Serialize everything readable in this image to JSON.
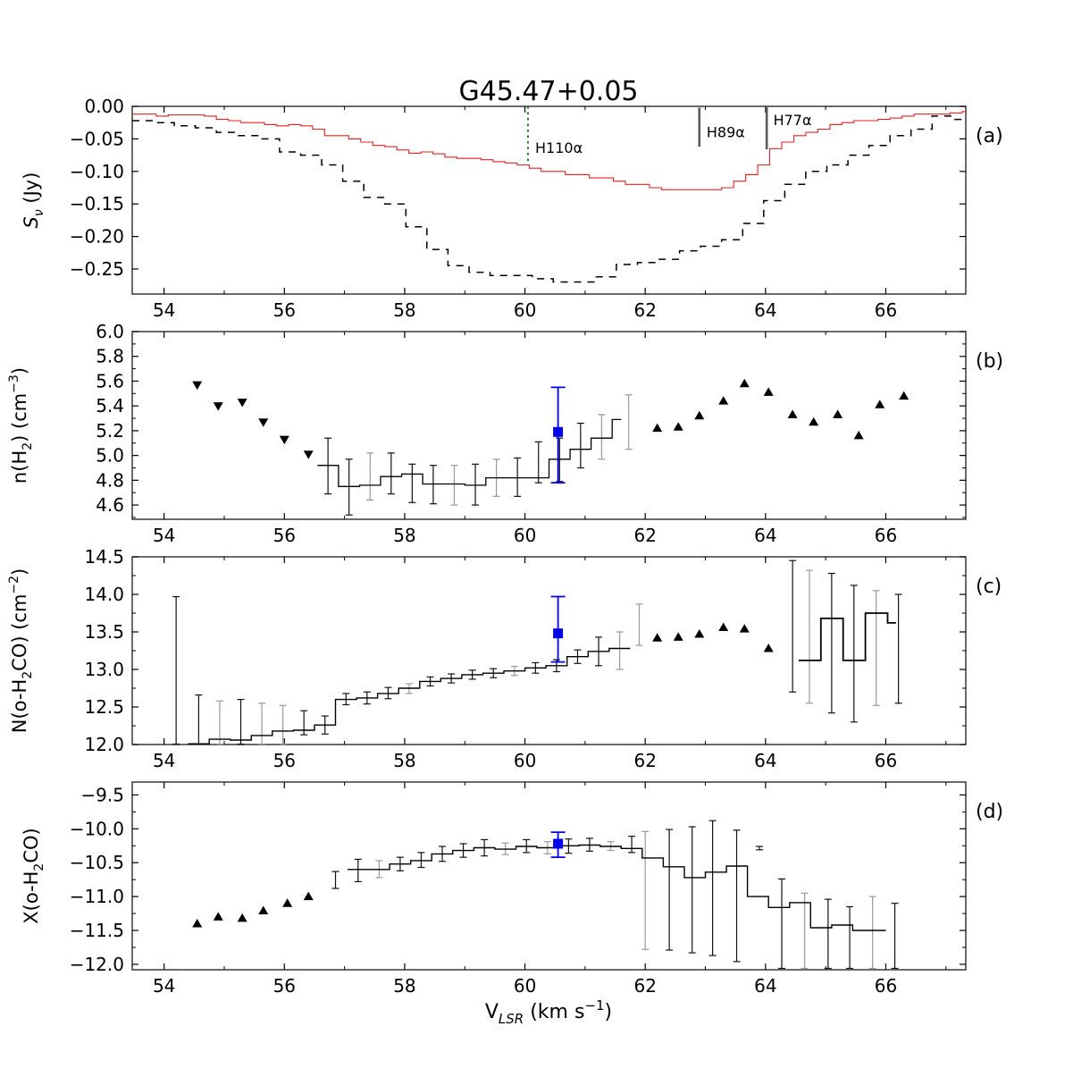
{
  "title": "G45.47+0.05",
  "xlabel_parts": [
    {
      "t": "V",
      "k": "n"
    },
    {
      "t": "LSR",
      "k": "subi"
    },
    {
      "t": " (km s",
      "k": "n"
    },
    {
      "t": "−1",
      "k": "sup"
    },
    {
      "t": ")",
      "k": "n"
    }
  ],
  "figure": {
    "bg": "#ffffff",
    "xlim": [
      53.47,
      67.33
    ],
    "x_ticks_major": [
      54,
      56,
      58,
      60,
      62,
      64,
      66
    ],
    "x_tick_labels": [
      "54",
      "56",
      "58",
      "60",
      "62",
      "64",
      "66"
    ],
    "x_ticks_minor": [
      55,
      57,
      59,
      61,
      63,
      65,
      67
    ]
  },
  "colors": {
    "red_line": "#e62020",
    "black_line": "#000000",
    "green_marker": "#1a7a1a",
    "gray_marker": "#5a5a5a",
    "gray_label": "#787878",
    "light_gray_label": "#8c8c8c",
    "blue_point": "#0000e8",
    "err_dark": "#111111",
    "err_gray": "#999999"
  },
  "chart_data": [
    {
      "id": "a",
      "tag": "(a)",
      "type": "line",
      "ylabel_parts": [
        {
          "t": "S",
          "k": "i"
        },
        {
          "t": "ν",
          "k": "subi"
        },
        {
          "t": " (Jy)",
          "k": "n"
        }
      ],
      "ylim_top": 0.0,
      "ylim_bottom": -0.2885,
      "yticks": [
        0.0,
        -0.05,
        -0.1,
        -0.15,
        -0.2,
        -0.25
      ],
      "ytick_labels": [
        "0.00",
        "−0.05",
        "−0.10",
        "−0.15",
        "−0.20",
        "−0.25"
      ],
      "yticks_minor": [],
      "steps": [
        {
          "name": "h2co-absorption-red",
          "x0": 53.47,
          "dx": 0.2,
          "color": "red_line",
          "lw": 1.1,
          "dash": null,
          "values": [
            -0.012,
            -0.012,
            -0.015,
            -0.013,
            -0.013,
            -0.013,
            -0.015,
            -0.02,
            -0.022,
            -0.025,
            -0.025,
            -0.028,
            -0.03,
            -0.028,
            -0.03,
            -0.035,
            -0.045,
            -0.045,
            -0.05,
            -0.055,
            -0.06,
            -0.062,
            -0.067,
            -0.072,
            -0.07,
            -0.073,
            -0.078,
            -0.08,
            -0.08,
            -0.082,
            -0.085,
            -0.087,
            -0.09,
            -0.095,
            -0.1,
            -0.1,
            -0.105,
            -0.105,
            -0.11,
            -0.11,
            -0.115,
            -0.12,
            -0.12,
            -0.125,
            -0.128,
            -0.128,
            -0.128,
            -0.128,
            -0.128,
            -0.125,
            -0.115,
            -0.105,
            -0.09,
            -0.065,
            -0.055,
            -0.045,
            -0.04,
            -0.035,
            -0.028,
            -0.025,
            -0.022,
            -0.022,
            -0.02,
            -0.018,
            -0.015,
            -0.012,
            -0.012,
            -0.012,
            -0.01,
            -0.008
          ]
        },
        {
          "name": "h2co-absorption-black-dashed",
          "x0": 53.47,
          "dx": 0.35,
          "color": "black_line",
          "lw": 1.5,
          "dash": "8,7",
          "values": [
            -0.022,
            -0.025,
            -0.03,
            -0.033,
            -0.04,
            -0.045,
            -0.05,
            -0.07,
            -0.075,
            -0.09,
            -0.115,
            -0.14,
            -0.15,
            -0.185,
            -0.22,
            -0.245,
            -0.255,
            -0.26,
            -0.26,
            -0.265,
            -0.27,
            -0.27,
            -0.262,
            -0.243,
            -0.24,
            -0.235,
            -0.222,
            -0.215,
            -0.205,
            -0.18,
            -0.145,
            -0.12,
            -0.1,
            -0.09,
            -0.075,
            -0.06,
            -0.045,
            -0.035,
            -0.015,
            -0.02
          ]
        }
      ],
      "vlines": [
        {
          "x": 60.05,
          "y_from": 0.0,
          "y_to": -0.085,
          "color": "green_marker",
          "dash": "2.5,4",
          "lw": 2.0,
          "label": "H110α",
          "label_x": 60.17,
          "label_y": -0.0715,
          "label_color": "green_marker"
        },
        {
          "x": 62.9,
          "y_from": -0.002,
          "y_to": -0.062,
          "color": "gray_marker",
          "dash": null,
          "lw": 2.6,
          "label": "H89α",
          "label_x": 63.02,
          "label_y": -0.0475,
          "label_color": "gray_label"
        },
        {
          "x": 64.02,
          "y_from": 0.0,
          "y_to": -0.066,
          "color": "gray_marker",
          "dash": null,
          "lw": 2.6,
          "label": "H77α",
          "label_x": 64.13,
          "label_y": -0.029,
          "label_color": "light_gray_label"
        }
      ]
    },
    {
      "id": "b",
      "tag": "(b)",
      "type": "line",
      "ylabel_parts": [
        {
          "t": "n(H",
          "k": "n"
        },
        {
          "t": "2",
          "k": "sub"
        },
        {
          "t": ") (cm",
          "k": "n"
        },
        {
          "t": "−3",
          "k": "sup"
        },
        {
          "t": ")",
          "k": "n"
        }
      ],
      "ylim_top": 6.0,
      "ylim_bottom": 4.485,
      "yticks": [
        6.0,
        5.8,
        5.6,
        5.4,
        5.2,
        5.0,
        4.8,
        4.6
      ],
      "ytick_labels": [
        "6.0",
        "5.8",
        "5.6",
        "5.4",
        "5.2",
        "5.0",
        "4.8",
        "4.6"
      ],
      "yticks_minor": [
        5.9,
        5.7,
        5.5,
        5.3,
        5.1,
        4.9,
        4.7,
        4.5
      ],
      "steps": [
        {
          "name": "nH2-step",
          "x0": 56.55,
          "dx": 0.35,
          "dxl": 0.15,
          "color": "black_line",
          "lw": 1.3,
          "dash": null,
          "values": [
            4.92,
            4.75,
            4.76,
            4.83,
            4.85,
            4.77,
            4.77,
            4.76,
            4.82,
            4.82,
            4.82,
            4.97,
            5.05,
            5.14,
            5.29
          ]
        }
      ],
      "errorbars": [
        [
          56.725,
          4.69,
          5.14,
          "d"
        ],
        [
          57.075,
          4.52,
          4.97,
          "d"
        ],
        [
          57.425,
          4.64,
          5.02,
          "g"
        ],
        [
          57.775,
          4.69,
          5.02,
          "d"
        ],
        [
          58.125,
          4.62,
          4.93,
          "d"
        ],
        [
          58.475,
          4.61,
          4.92,
          "d"
        ],
        [
          58.825,
          4.6,
          4.92,
          "g"
        ],
        [
          59.175,
          4.6,
          4.93,
          "d"
        ],
        [
          59.525,
          4.67,
          4.97,
          "g"
        ],
        [
          59.875,
          4.67,
          4.98,
          "d"
        ],
        [
          60.225,
          4.78,
          5.11,
          "d"
        ],
        [
          60.575,
          4.79,
          5.14,
          "d"
        ],
        [
          60.925,
          4.9,
          5.26,
          "d"
        ],
        [
          61.275,
          4.97,
          5.33,
          "g"
        ],
        [
          61.725,
          5.05,
          5.49,
          "g"
        ]
      ],
      "markers_down": [
        [
          54.55,
          5.57
        ],
        [
          54.9,
          5.4
        ],
        [
          55.3,
          5.43
        ],
        [
          55.65,
          5.27
        ],
        [
          56.0,
          5.13
        ],
        [
          56.4,
          5.01
        ]
      ],
      "markers_up": [
        [
          62.2,
          5.22
        ],
        [
          62.55,
          5.23
        ],
        [
          62.9,
          5.32
        ],
        [
          63.3,
          5.44
        ],
        [
          63.65,
          5.58
        ],
        [
          64.05,
          5.51
        ],
        [
          64.45,
          5.33
        ],
        [
          64.8,
          5.27
        ],
        [
          65.2,
          5.33
        ],
        [
          65.55,
          5.16
        ],
        [
          65.9,
          5.41
        ],
        [
          66.3,
          5.48
        ]
      ],
      "blue_point": {
        "x": 60.55,
        "y": 5.19,
        "lo": 4.78,
        "hi": 5.55
      }
    },
    {
      "id": "c",
      "tag": "(c)",
      "type": "line",
      "ylabel_parts": [
        {
          "t": "N(o-H",
          "k": "n"
        },
        {
          "t": "2",
          "k": "sub"
        },
        {
          "t": "CO) (cm",
          "k": "n"
        },
        {
          "t": "−2",
          "k": "sup"
        },
        {
          "t": ")",
          "k": "n"
        }
      ],
      "ylim_top": 14.5,
      "ylim_bottom": 12.0,
      "yticks": [
        14.5,
        14.0,
        13.5,
        13.0,
        12.5,
        12.0
      ],
      "ytick_labels": [
        "14.5",
        "14.0",
        "13.5",
        "13.0",
        "12.5",
        "12.0"
      ],
      "yticks_minor": [
        14.25,
        13.75,
        13.25,
        12.75,
        12.25
      ],
      "steps": [
        {
          "name": "NH2CO-step",
          "x0": 54.4,
          "dx": 0.35,
          "color": "black_line",
          "lw": 1.4,
          "dash": null,
          "values": [
            12.01,
            12.07,
            12.06,
            12.12,
            12.18,
            12.19,
            12.26,
            12.6,
            12.62,
            12.68,
            12.75,
            12.84,
            12.88,
            12.93,
            12.95,
            12.98,
            13.02,
            13.05,
            13.17,
            13.24,
            13.28
          ]
        },
        {
          "name": "NH2CO-step-right",
          "x0": 64.55,
          "dx": 0.37,
          "dxl": 0.14,
          "color": "black_line",
          "lw": 1.8,
          "dash": null,
          "values": [
            13.12,
            13.68,
            13.12,
            13.75,
            13.62
          ]
        }
      ],
      "errorbars": [
        [
          54.2,
          12.0,
          13.97,
          "d"
        ],
        [
          54.575,
          12.0,
          12.66,
          "d"
        ],
        [
          54.925,
          12.0,
          12.58,
          "g"
        ],
        [
          55.275,
          12.0,
          12.6,
          "d"
        ],
        [
          55.625,
          12.0,
          12.55,
          "g"
        ],
        [
          55.975,
          12.0,
          12.52,
          "g"
        ],
        [
          56.325,
          12.13,
          12.45,
          "d"
        ],
        [
          56.675,
          12.14,
          12.38,
          "d"
        ],
        [
          57.025,
          12.53,
          12.68,
          "d"
        ],
        [
          57.375,
          12.54,
          12.7,
          "d"
        ],
        [
          57.725,
          12.61,
          12.76,
          "d"
        ],
        [
          58.075,
          12.68,
          12.81,
          "g"
        ],
        [
          58.425,
          12.78,
          12.9,
          "d"
        ],
        [
          58.775,
          12.82,
          12.94,
          "d"
        ],
        [
          59.125,
          12.87,
          12.99,
          "d"
        ],
        [
          59.475,
          12.89,
          13.01,
          "d"
        ],
        [
          59.825,
          12.92,
          13.04,
          "g"
        ],
        [
          60.175,
          12.95,
          13.09,
          "d"
        ],
        [
          60.525,
          12.97,
          13.13,
          "d"
        ],
        [
          60.875,
          13.08,
          13.26,
          "d"
        ],
        [
          61.225,
          13.05,
          13.43,
          "d"
        ],
        [
          61.575,
          13.0,
          13.5,
          "g"
        ],
        [
          61.9,
          13.32,
          13.87,
          "g"
        ],
        [
          64.45,
          12.7,
          14.45,
          "d"
        ],
        [
          64.73,
          12.55,
          14.32,
          "g"
        ],
        [
          65.1,
          12.42,
          14.28,
          "d"
        ],
        [
          65.47,
          12.3,
          14.12,
          "d"
        ],
        [
          65.84,
          12.52,
          14.05,
          "g"
        ],
        [
          66.21,
          12.55,
          14.0,
          "d"
        ]
      ],
      "markers_down": [],
      "markers_up": [
        [
          62.2,
          13.42
        ],
        [
          62.55,
          13.43
        ],
        [
          62.9,
          13.47
        ],
        [
          63.3,
          13.56
        ],
        [
          63.65,
          13.54
        ],
        [
          64.05,
          13.28
        ]
      ],
      "blue_point": {
        "x": 60.55,
        "y": 13.48,
        "lo": 13.1,
        "hi": 13.97
      }
    },
    {
      "id": "d",
      "tag": "(d)",
      "type": "line",
      "ylabel_parts": [
        {
          "t": "X(o-H",
          "k": "n"
        },
        {
          "t": "2",
          "k": "sub"
        },
        {
          "t": "CO)",
          "k": "n"
        }
      ],
      "ylim_top": -9.31,
      "ylim_bottom": -12.08,
      "yticks": [
        -9.5,
        -10.0,
        -10.5,
        -11.0,
        -11.5,
        -12.0
      ],
      "ytick_labels": [
        "−9.5",
        "−10.0",
        "−10.5",
        "−11.0",
        "−11.5",
        "−12.0"
      ],
      "yticks_minor": [
        -9.75,
        -10.25,
        -10.75,
        -11.25,
        -11.75
      ],
      "steps": [
        {
          "name": "XH2CO-step",
          "x0": 57.05,
          "dx": 0.35,
          "dxl": 0.2,
          "color": "black_line",
          "lw": 1.4,
          "dash": null,
          "values": [
            -10.6,
            -10.6,
            -10.52,
            -10.47,
            -10.37,
            -10.32,
            -10.28,
            -10.3,
            -10.26,
            -10.28,
            -10.25,
            -10.24,
            -10.26,
            -10.29,
            -10.43,
            -10.56,
            -10.72,
            -10.64,
            -10.55,
            -11.0,
            -11.16,
            -11.09,
            -11.46,
            -11.42,
            -11.5,
            -11.5
          ]
        }
      ],
      "errorbars": [
        [
          56.85,
          -10.88,
          -10.63,
          "d"
        ],
        [
          57.225,
          -10.78,
          -10.45,
          "d"
        ],
        [
          57.575,
          -10.72,
          -10.47,
          "g"
        ],
        [
          57.925,
          -10.62,
          -10.42,
          "d"
        ],
        [
          58.275,
          -10.57,
          -10.35,
          "d"
        ],
        [
          58.625,
          -10.48,
          -10.26,
          "d"
        ],
        [
          58.975,
          -10.42,
          -10.22,
          "d"
        ],
        [
          59.325,
          -10.4,
          -10.16,
          "d"
        ],
        [
          59.675,
          -10.38,
          -10.21,
          "g"
        ],
        [
          60.025,
          -10.35,
          -10.16,
          "d"
        ],
        [
          60.375,
          -10.37,
          -10.19,
          "g"
        ],
        [
          60.725,
          -10.36,
          -10.15,
          "d"
        ],
        [
          61.075,
          -10.33,
          -10.14,
          "d"
        ],
        [
          61.425,
          -10.32,
          -10.19,
          "g"
        ],
        [
          61.775,
          -10.35,
          -10.11,
          "d"
        ],
        [
          62.0,
          -11.78,
          -10.04,
          "g"
        ],
        [
          62.4,
          -11.79,
          -10.01,
          "d"
        ],
        [
          62.78,
          -11.83,
          -9.97,
          "d"
        ],
        [
          63.12,
          -11.87,
          -9.88,
          "d"
        ],
        [
          63.52,
          -11.96,
          -10.02,
          "d"
        ],
        [
          63.9,
          -10.31,
          -10.26,
          "d"
        ],
        [
          64.27,
          -12.06,
          -10.74,
          "d"
        ],
        [
          64.65,
          -12.06,
          -10.95,
          "g"
        ],
        [
          65.04,
          -12.06,
          -11.04,
          "d"
        ],
        [
          65.4,
          -12.06,
          -11.15,
          "d"
        ],
        [
          65.78,
          -12.06,
          -11.0,
          "g"
        ],
        [
          66.15,
          -12.06,
          -11.1,
          "d"
        ]
      ],
      "markers_down": [],
      "markers_up": [
        [
          54.55,
          -11.4
        ],
        [
          54.9,
          -11.3
        ],
        [
          55.3,
          -11.32
        ],
        [
          55.65,
          -11.21
        ],
        [
          56.05,
          -11.1
        ],
        [
          56.4,
          -11.0
        ]
      ],
      "blue_point": {
        "x": 60.55,
        "y": -10.22,
        "lo": -10.42,
        "hi": -10.05
      }
    }
  ]
}
